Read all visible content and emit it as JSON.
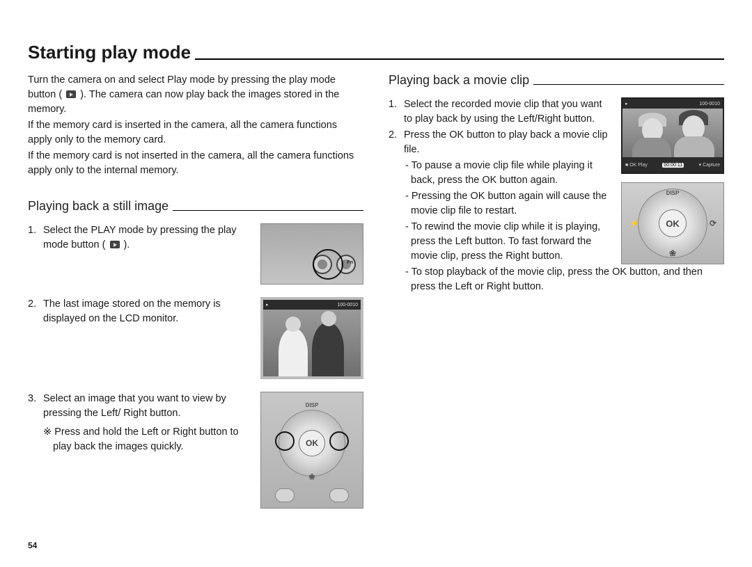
{
  "page_number": "54",
  "title": "Starting play mode",
  "intro": {
    "p1a": "Turn the camera on and select Play mode by pressing the play mode button ( ",
    "p1b": " ). The camera can now play back the images stored in the memory.",
    "p2": "If the memory card is inserted in the camera, all the camera functions apply only to the memory card.",
    "p3": "If the memory card is not inserted in the camera, all the camera functions apply only to the internal memory."
  },
  "left": {
    "subheading": "Playing back a still image",
    "step1a": "Select the PLAY mode by pressing the play mode button ( ",
    "step1b": " ).",
    "step2": "The last image stored on the memory is displayed on the LCD monitor.",
    "step3": "Select an image that you want to view by pressing the Left/ Right button.",
    "note": "Press and hold the Left or Right button to play back the images quickly.",
    "note_marker": "※",
    "fig1": {
      "fn_label": "Fn",
      "play_glyph": "▸"
    },
    "fig2": {
      "counter": "100-0010",
      "bar_left": "▸"
    },
    "fig3": {
      "ok": "OK",
      "disp": "DISP",
      "macro": "❀"
    }
  },
  "right": {
    "subheading": "Playing back a movie clip",
    "step1": "Select the recorded movie clip that you want to play back by using the Left/Right button.",
    "step2": "Press the OK button to play back a movie clip file.",
    "sub1": "To pause a movie clip file while playing it back, press the OK button again.",
    "sub2": "Pressing the OK button again will cause the movie clip file to restart.",
    "sub3": "To rewind the movie clip while it is playing, press the Left button. To fast forward the movie clip, press the Right button.",
    "sub4": "To stop playback of the movie clip, press the OK button, and then press the Left or Right button.",
    "movie_lcd": {
      "counter": "100-0010",
      "timer": "00:00:11",
      "bot_left_icon": "OK",
      "bot_left": "Play",
      "bot_right_icon": "▾",
      "bot_right": "Capture",
      "stop_icon": "■"
    },
    "pad": {
      "ok": "OK",
      "disp": "DISP",
      "macro": "❀",
      "flash": "⚡",
      "timer": "⟳"
    }
  }
}
